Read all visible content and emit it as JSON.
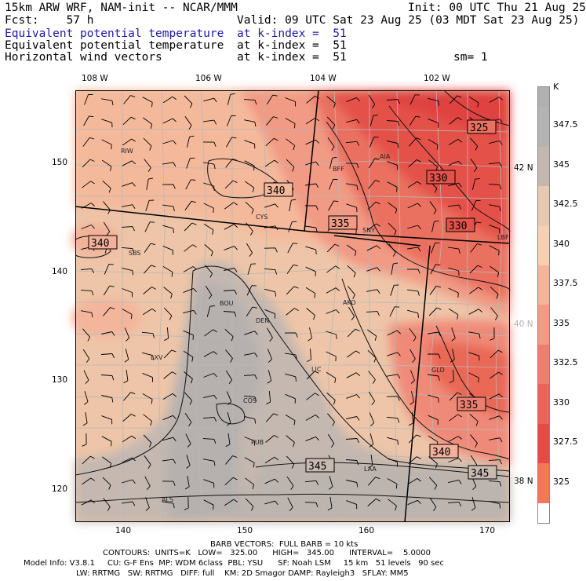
{
  "header": {
    "line1_left": "15km ARW WRF, NAM-init -- NCAR/MMM",
    "line1_right": "Init: 00 UTC Thu 21 Aug 25",
    "fcst": "Fcst:    57 h",
    "valid": "Valid: 09 UTC Sat 23 Aug 25 (03 MDT Sat 23 Aug 25)",
    "field1_name": "Equivalent potential temperature",
    "field1_level": "at k-index =  51",
    "field2_name": "Equivalent potential temperature",
    "field2_level": "at k-index =  51",
    "field3_name": "Horizontal wind vectors",
    "field3_level": "at k-index =  51",
    "smoothing": "sm= 1"
  },
  "colors": {
    "field1_title": "#1a1aa8",
    "contour_line": "#111111",
    "state_border": "#000000",
    "county_line": "#b8b8b8",
    "wind_barb": "#000000"
  },
  "axes": {
    "top_lon": [
      "108 W",
      "106 W",
      "104 W",
      "102 W"
    ],
    "bottom_grid_x": [
      "140",
      "150",
      "160",
      "170"
    ],
    "left_grid_y": [
      "150",
      "140",
      "130",
      "120"
    ],
    "right_lat": [
      "42 N",
      "40 N",
      "38 N"
    ]
  },
  "station_labels": [
    "RIW",
    "BFF",
    "CYS",
    "SNY",
    "SBS",
    "BOU",
    "DEN",
    "AKO",
    "LXV",
    "LIC",
    "COS",
    "GLD",
    "PUB",
    "LAA",
    "ALS",
    "LBF",
    "AIA"
  ],
  "contour_labels": [
    "325",
    "330",
    "330",
    "335",
    "340",
    "340",
    "335",
    "340",
    "345",
    "345"
  ],
  "colorbar": {
    "unit": "K",
    "labels": [
      "347.5",
      "345",
      "342.5",
      "340",
      "337.5",
      "335",
      "332.5",
      "330",
      "327.5",
      "325"
    ],
    "colors": [
      "#b4b4b4",
      "#c4b7ae",
      "#e8c8b0",
      "#f5d0b2",
      "#f3b49a",
      "#f19a84",
      "#ec8070",
      "#e8655a",
      "#e34c44",
      "#f07a55"
    ]
  },
  "footer": {
    "barb_note": "BARB VECTORS:  FULL BARB = 10 kts",
    "contours": "CONTOURS:  UNITS=K   LOW=   325.00      HIGH=   345.00      INTERVAL=    5.0000",
    "model_info_1": "Model Info: V3.8.1     CU: G-F Ens  MP: WDM 6class  PBL: YSU      SF: Noah LSM     15 km   51 levels   90 sec",
    "model_info_2": "LW: RRTMG   SW: RRTMG   DIFF: full    KM: 2D Smagor DAMP: Rayleigh3   SFLAY: MM5"
  }
}
